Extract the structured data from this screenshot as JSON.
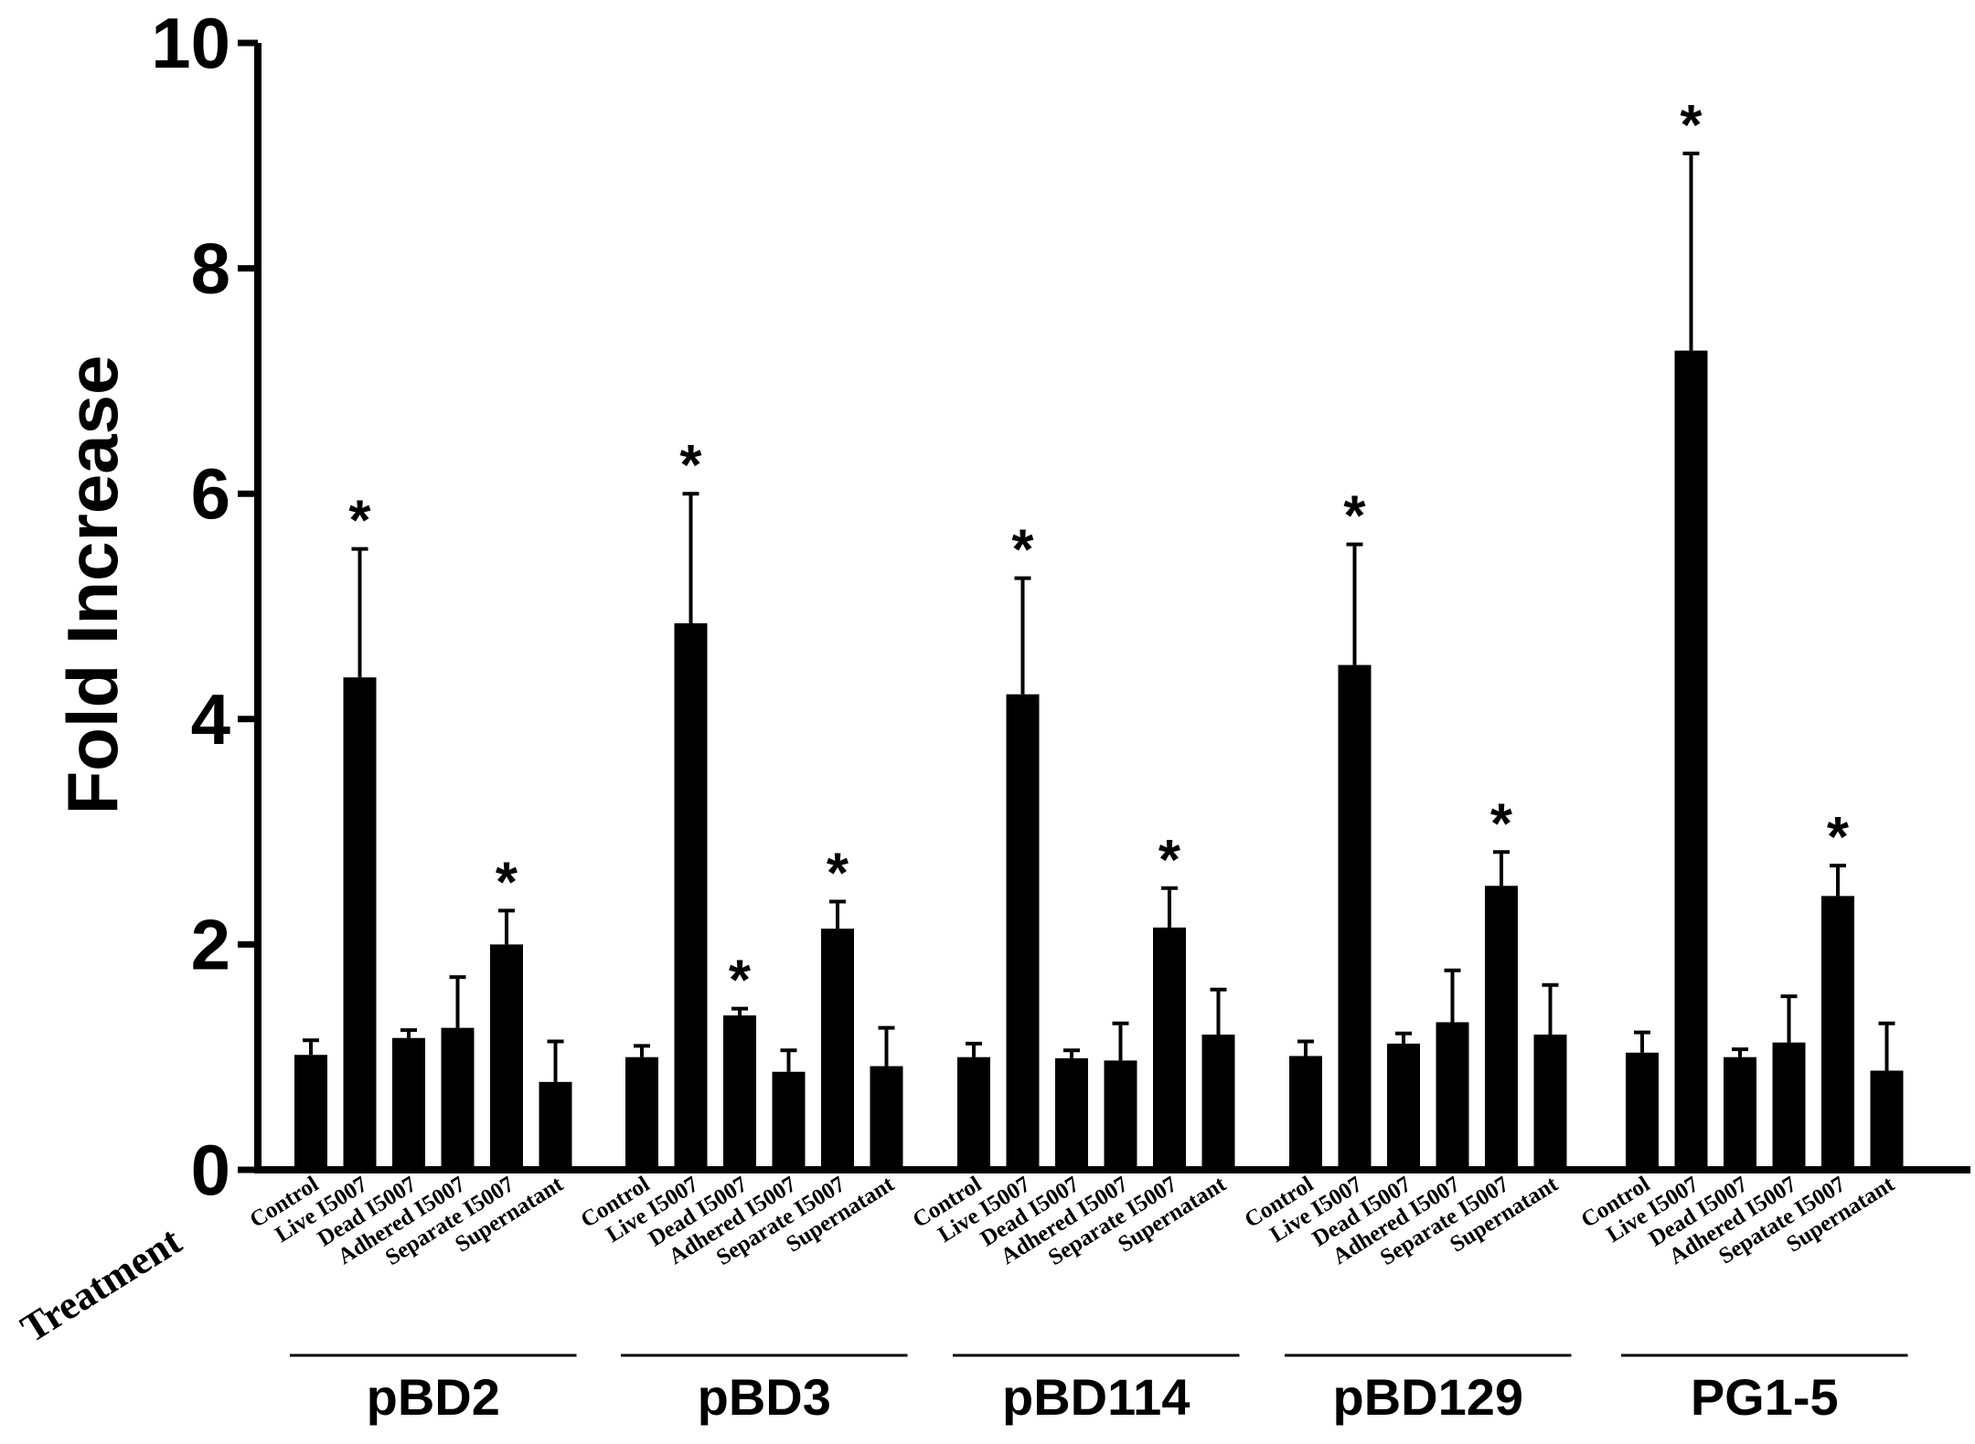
{
  "chart_data": {
    "type": "bar",
    "ylabel": "Fold Increase",
    "xlabel": "Treatment",
    "ylim": [
      0,
      10
    ],
    "yticks": [
      "0",
      "2",
      "4",
      "6",
      "8",
      "10"
    ],
    "grid": false,
    "bar_color": "#000000",
    "groups": [
      {
        "name": "pBD2",
        "categories": [
          "Control",
          "Live I5007",
          "Dead I5007",
          "Adhered I5007",
          "Separate I5007",
          "Supernatant"
        ],
        "values": [
          1.02,
          4.37,
          1.17,
          1.26,
          2.0,
          0.78
        ],
        "errors": [
          0.13,
          1.14,
          0.07,
          0.45,
          0.3,
          0.36
        ],
        "significant": [
          false,
          true,
          false,
          false,
          true,
          false
        ]
      },
      {
        "name": "pBD3",
        "categories": [
          "Control",
          "Live I5007",
          "Dead I5007",
          "Adhered I5007",
          "Separate I5007",
          "Supernatant"
        ],
        "values": [
          1.0,
          4.85,
          1.37,
          0.87,
          2.14,
          0.92
        ],
        "errors": [
          0.1,
          1.15,
          0.06,
          0.19,
          0.24,
          0.34
        ],
        "significant": [
          false,
          true,
          true,
          false,
          true,
          false
        ]
      },
      {
        "name": "pBD114",
        "categories": [
          "Control",
          "Live I5007",
          "Dead I5007",
          "Adhered I5007",
          "Separate I5007",
          "Supernatant"
        ],
        "values": [
          1.0,
          4.22,
          0.99,
          0.97,
          2.15,
          1.2
        ],
        "errors": [
          0.12,
          1.03,
          0.07,
          0.33,
          0.35,
          0.4
        ],
        "significant": [
          false,
          true,
          false,
          false,
          true,
          false
        ]
      },
      {
        "name": "pBD129",
        "categories": [
          "Control",
          "Live I5007",
          "Dead I5007",
          "Adhered I5007",
          "Separate I5007",
          "Supernatant"
        ],
        "values": [
          1.01,
          4.48,
          1.12,
          1.31,
          2.52,
          1.2
        ],
        "errors": [
          0.13,
          1.07,
          0.09,
          0.46,
          0.3,
          0.44
        ],
        "significant": [
          false,
          true,
          false,
          false,
          true,
          false
        ]
      },
      {
        "name": "PG1-5",
        "categories": [
          "Control",
          "Live I5007",
          "Dead I5007",
          "Adhered I5007",
          "Sepatate I5007",
          "Supernatant"
        ],
        "values": [
          1.04,
          7.27,
          1.0,
          1.13,
          2.43,
          0.88
        ],
        "errors": [
          0.18,
          1.75,
          0.07,
          0.41,
          0.27,
          0.42
        ],
        "significant": [
          false,
          true,
          false,
          false,
          true,
          false
        ]
      }
    ],
    "significance_marker": "*"
  }
}
